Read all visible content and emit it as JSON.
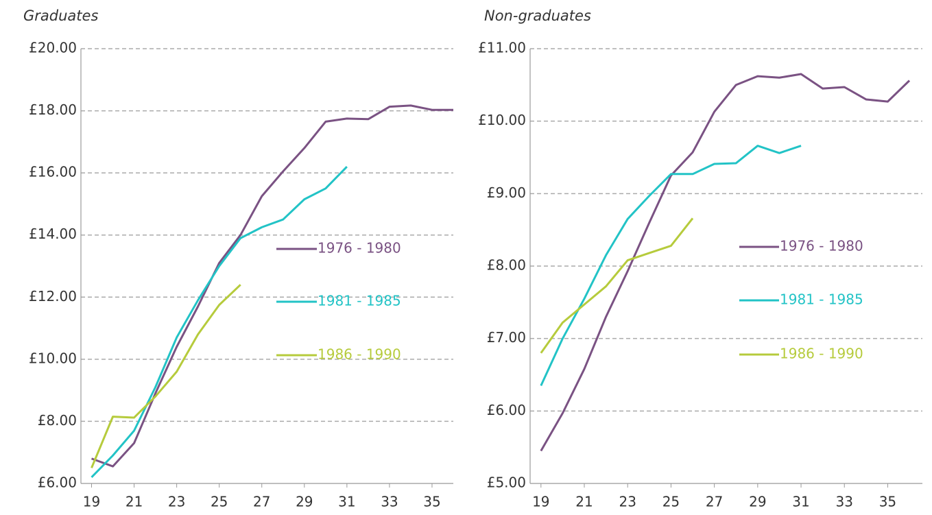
{
  "chart_data": [
    {
      "type": "line",
      "title": "Graduates",
      "x": [
        19,
        20,
        21,
        22,
        23,
        24,
        25,
        26,
        27,
        28,
        29,
        30,
        31,
        32,
        33,
        34,
        35,
        36
      ],
      "xlim": [
        18.5,
        36
      ],
      "xticks": [
        19,
        21,
        23,
        25,
        27,
        29,
        31,
        33,
        35
      ],
      "ylim": [
        6,
        20
      ],
      "yticks": [
        {
          "value": 6,
          "label": "£6.00"
        },
        {
          "value": 8,
          "label": "£8.00"
        },
        {
          "value": 10,
          "label": "£10.00"
        },
        {
          "value": 12,
          "label": "£12.00"
        },
        {
          "value": 14,
          "label": "£14.00"
        },
        {
          "value": 16,
          "label": "£16.00"
        },
        {
          "value": 18,
          "label": "£18.00"
        },
        {
          "value": 20,
          "label": "£20.00"
        }
      ],
      "grid": true,
      "series": [
        {
          "name": "1976 - 1980",
          "color": "#7a5283",
          "values": [
            6.8,
            6.55,
            7.3,
            8.9,
            10.4,
            11.7,
            13.1,
            14.0,
            15.25,
            16.05,
            16.8,
            17.65,
            17.75,
            17.73,
            18.13,
            18.17,
            18.03,
            18.03
          ]
        },
        {
          "name": "1981 - 1985",
          "color": "#22c3c6",
          "values": [
            6.2,
            6.9,
            7.7,
            9.1,
            10.7,
            11.9,
            13.0,
            13.9,
            14.25,
            14.5,
            15.15,
            15.5,
            16.2,
            null,
            null,
            null,
            null,
            null
          ]
        },
        {
          "name": "1986 - 1990",
          "color": "#b6cb3c",
          "values": [
            6.5,
            8.15,
            8.12,
            8.8,
            9.6,
            10.8,
            11.75,
            12.4,
            null,
            null,
            null,
            null,
            null,
            null,
            null,
            null,
            null,
            null
          ]
        }
      ]
    },
    {
      "type": "line",
      "title": "Non-graduates",
      "x": [
        19,
        20,
        21,
        22,
        23,
        24,
        25,
        26,
        27,
        28,
        29,
        30,
        31,
        32,
        33,
        34,
        35,
        36
      ],
      "xlim": [
        18.5,
        36.6
      ],
      "xticks": [
        19,
        21,
        23,
        25,
        27,
        29,
        31,
        33,
        35
      ],
      "ylim": [
        5,
        11
      ],
      "yticks": [
        {
          "value": 5,
          "label": "£5.00"
        },
        {
          "value": 6,
          "label": "£6.00"
        },
        {
          "value": 7,
          "label": "£7.00"
        },
        {
          "value": 8,
          "label": "£8.00"
        },
        {
          "value": 9,
          "label": "£9.00"
        },
        {
          "value": 10,
          "label": "£10.00"
        },
        {
          "value": 11,
          "label": "£11.00"
        }
      ],
      "grid": true,
      "series": [
        {
          "name": "1976 - 1980",
          "color": "#7a5283",
          "values": [
            5.45,
            5.97,
            6.58,
            7.3,
            7.93,
            8.6,
            9.25,
            9.57,
            10.13,
            10.5,
            10.62,
            10.6,
            10.65,
            10.45,
            10.47,
            10.3,
            10.27,
            10.56
          ]
        },
        {
          "name": "1981 - 1985",
          "color": "#22c3c6",
          "values": [
            6.35,
            7.0,
            7.55,
            8.15,
            8.65,
            8.97,
            9.27,
            9.27,
            9.41,
            9.42,
            9.66,
            9.56,
            9.66,
            null,
            null,
            null,
            null,
            null
          ]
        },
        {
          "name": "1986 - 1990",
          "color": "#b6cb3c",
          "values": [
            6.8,
            7.22,
            7.47,
            7.72,
            8.08,
            8.18,
            8.28,
            8.66,
            null,
            null,
            null,
            null,
            null,
            null,
            null,
            null,
            null,
            null
          ]
        }
      ]
    }
  ]
}
